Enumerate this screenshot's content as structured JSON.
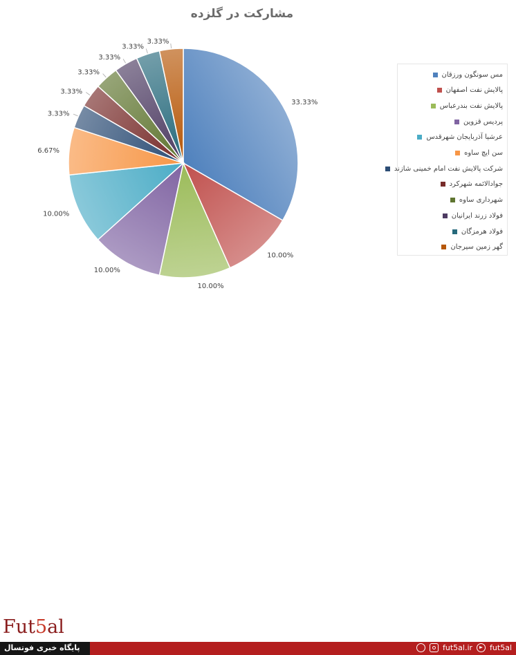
{
  "chart_data": {
    "type": "pie",
    "title": "مشارکت در گلزده",
    "categories": [
      "مس سونگون ورزقان",
      "پالایش نفت اصفهان",
      "پالایش نفت بندرعباس",
      "پردیس قزوین",
      "عرشیا آذربایجان شهرقدس",
      "سن ایچ ساوه",
      "شرکت پالایش نفت امام خمینی شازند",
      "جوادالائمه شهرکرد",
      "شهرداری ساوه",
      "فولاد زرند ایرانیان",
      "فولاد هرمزگان",
      "گهر زمین سیرجان"
    ],
    "values": [
      33.33,
      10.0,
      10.0,
      10.0,
      10.0,
      6.67,
      3.33,
      3.33,
      3.33,
      3.33,
      3.33,
      3.33
    ],
    "labels": [
      "33.33%",
      "10.00%",
      "10.00%",
      "10.00%",
      "10.00%",
      "6.67%",
      "3.33%",
      "3.33%",
      "3.33%",
      "3.33%",
      "3.33%",
      "3.33%"
    ],
    "colors": [
      "#4f81bd",
      "#c0504d",
      "#9bbb59",
      "#8064a2",
      "#4bacc6",
      "#f79646",
      "#2c4d75",
      "#772c2a",
      "#5f7530",
      "#4d3b62",
      "#276a7c",
      "#b65708"
    ],
    "legend_position": "right"
  },
  "footer": {
    "logo_text": "Fut5al",
    "caption": "پایگاه خبری فوتسال",
    "site": "fut5al.ir",
    "telegram": "fut5al"
  }
}
